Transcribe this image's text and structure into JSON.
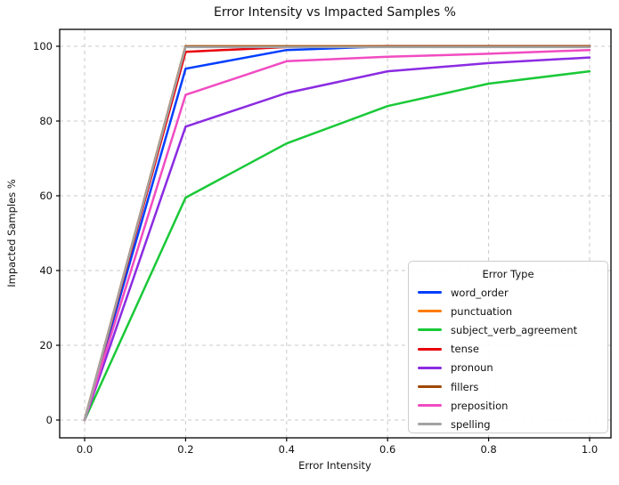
{
  "chart_data": {
    "type": "line",
    "title": "Error Intensity vs Impacted Samples %",
    "xlabel": "Error Intensity",
    "ylabel": "Impacted Samples %",
    "x": [
      0.0,
      0.2,
      0.4,
      0.6,
      0.8,
      1.0
    ],
    "xtick_labels": [
      "0.0",
      "0.2",
      "0.4",
      "0.6",
      "0.8",
      "1.0"
    ],
    "yticks": [
      0,
      20,
      40,
      60,
      80,
      100
    ],
    "xlim": [
      -0.05,
      1.05
    ],
    "ylim": [
      -5,
      105
    ],
    "grid": true,
    "grid_style": "dashed",
    "legend": {
      "title": "Error Type",
      "position": "lower right"
    },
    "series": [
      {
        "name": "word_order",
        "color": "#023EFF",
        "values": [
          0,
          94,
          99,
          100,
          100,
          100
        ]
      },
      {
        "name": "punctuation",
        "color": "#FF7C00",
        "values": [
          0,
          100,
          100,
          100,
          100,
          100
        ]
      },
      {
        "name": "subject_verb_agreement",
        "color": "#1AC938",
        "values": [
          0,
          59.5,
          74,
          84,
          90,
          93.3
        ]
      },
      {
        "name": "tense",
        "color": "#E8000B",
        "values": [
          0,
          98.5,
          99.8,
          100,
          100,
          100
        ]
      },
      {
        "name": "pronoun",
        "color": "#8B2BE2",
        "values": [
          0,
          78.5,
          87.5,
          93.3,
          95.5,
          97
        ]
      },
      {
        "name": "fillers",
        "color": "#9F4800",
        "values": [
          0,
          100,
          100,
          100,
          100,
          100
        ]
      },
      {
        "name": "preposition",
        "color": "#F14CC1",
        "values": [
          0,
          87,
          96,
          97.2,
          98,
          99
        ]
      },
      {
        "name": "spelling",
        "color": "#A3A3A3",
        "values": [
          0,
          99.8,
          99.8,
          99.8,
          99.8,
          99.8
        ]
      }
    ]
  }
}
